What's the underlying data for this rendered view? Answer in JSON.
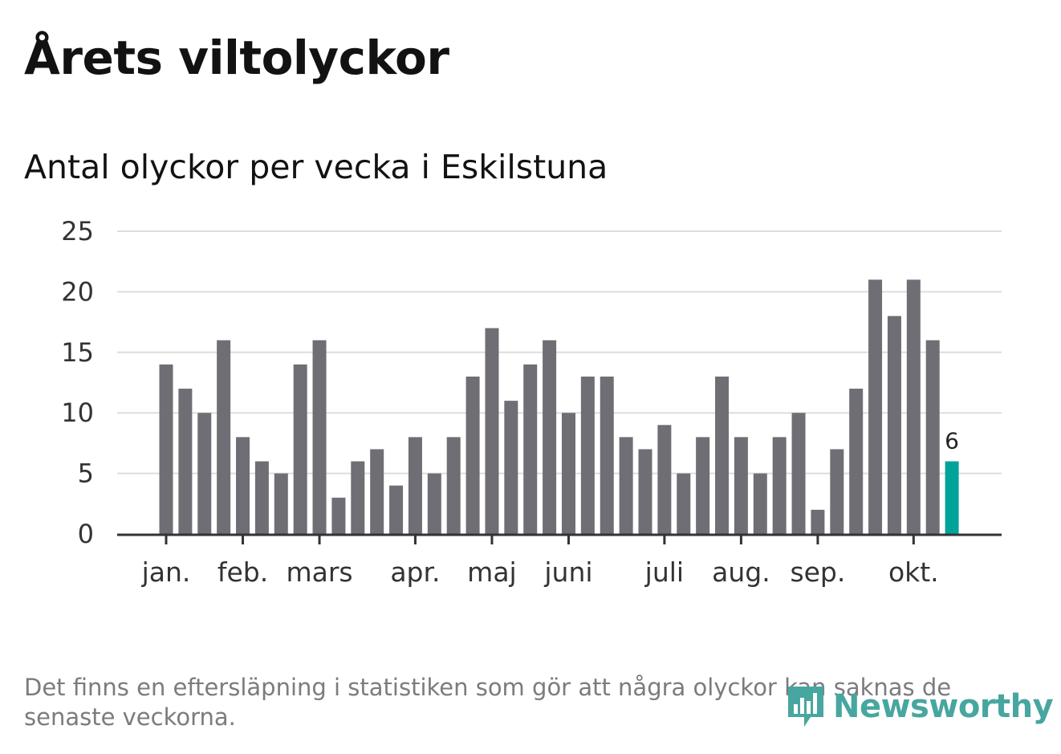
{
  "chart_data": {
    "type": "bar",
    "title": "Årets viltolyckor",
    "subtitle": "Antal olyckor per vecka i Eskilstuna",
    "values": [
      14,
      12,
      10,
      16,
      8,
      6,
      5,
      14,
      16,
      3,
      6,
      7,
      4,
      8,
      5,
      8,
      13,
      17,
      11,
      14,
      16,
      10,
      13,
      13,
      8,
      7,
      9,
      5,
      8,
      13,
      8,
      5,
      8,
      10,
      2,
      7,
      12,
      21,
      18,
      21,
      16,
      6
    ],
    "highlight_label": "6",
    "month_labels": [
      {
        "label": "jan.",
        "week": 1
      },
      {
        "label": "feb.",
        "week": 5
      },
      {
        "label": "mars",
        "week": 9
      },
      {
        "label": "apr.",
        "week": 14
      },
      {
        "label": "maj",
        "week": 18
      },
      {
        "label": "juni",
        "week": 22
      },
      {
        "label": "juli",
        "week": 27
      },
      {
        "label": "aug.",
        "week": 31
      },
      {
        "label": "sep.",
        "week": 35
      },
      {
        "label": "okt.",
        "week": 40
      }
    ],
    "yticks": [
      0,
      5,
      10,
      15,
      20,
      25
    ],
    "ylim": [
      0,
      25
    ],
    "grid": true,
    "colors": {
      "bar": "#6e6e74",
      "highlight": "#00a39a",
      "grid": "#dddddd",
      "axis": "#333333"
    }
  },
  "footnote": "Det finns en eftersläpning i statistiken som gör att några olyckor kan saknas de senaste veckorna.",
  "logo": {
    "text": "Newsworthy",
    "icon": "newsworthy-logo-icon",
    "color": "#47a6a0"
  }
}
